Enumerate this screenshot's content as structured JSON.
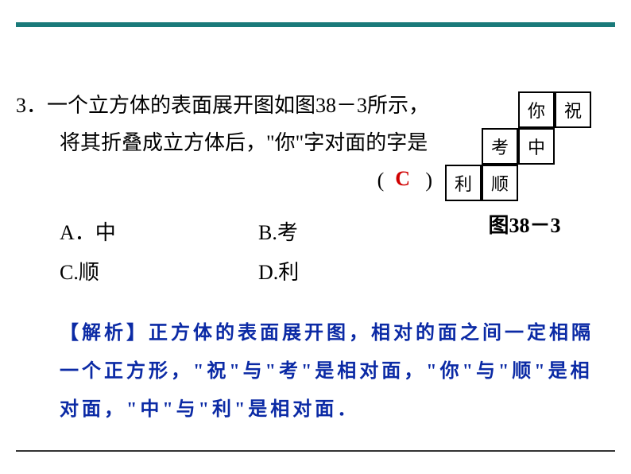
{
  "question": {
    "number": "3．",
    "line1": "一个立方体的表面展开图如图38－3所示，",
    "line2": "将其折叠成立方体后，\"你\"字对面的字是",
    "paren_open": "(",
    "paren_close": ")",
    "answer": "C"
  },
  "options": {
    "A": "A．中",
    "B": "B.考",
    "C": "C.顺",
    "D": "D.利"
  },
  "figure": {
    "cells": {
      "ni": "你",
      "zhu": "祝",
      "kao": "考",
      "zhong": "中",
      "li": "利",
      "shun": "顺"
    },
    "caption": "图38－3",
    "layout": {
      "cell_size": 46,
      "positions": {
        "ni": {
          "col": 2,
          "row": 0
        },
        "zhu": {
          "col": 3,
          "row": 0
        },
        "kao": {
          "col": 1,
          "row": 1
        },
        "zhong": {
          "col": 2,
          "row": 1
        },
        "li": {
          "col": 0,
          "row": 2
        },
        "shun": {
          "col": 1,
          "row": 2
        }
      }
    }
  },
  "analysis": {
    "label": "【解析】",
    "text": "正方体的表面展开图，相对的面之间一定相隔一个正方形，\"祝\"与\"考\"是相对面，\"你\"与\"顺\"是相对面，\"中\"与\"利\"是相对面．"
  },
  "colors": {
    "rule": "#1a7a7a",
    "answer": "#d00000",
    "analysis": "#0b2aa5",
    "text": "#000000",
    "bg": "#ffffff"
  }
}
